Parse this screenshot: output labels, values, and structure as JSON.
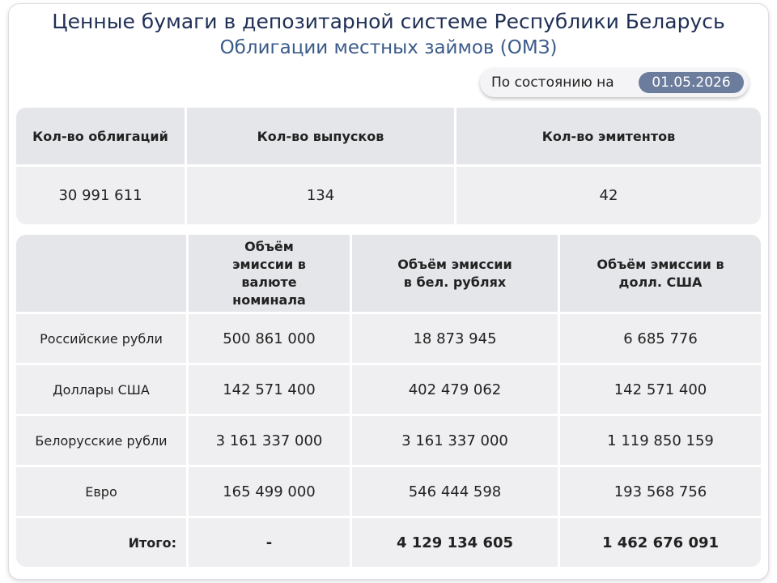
{
  "header": {
    "title": "Ценные бумаги в депозитарной системе Республики Беларусь",
    "subtitle": "Облигации местных займов (ОМЗ)",
    "as_of_label": "По состоянию на",
    "as_of_date": "01.05.2026"
  },
  "summary": {
    "columns": [
      "Кол-во облигаций",
      "Кол-во выпусков",
      "Кол-во эмитентов"
    ],
    "values": [
      "30 991 611",
      "134",
      "42"
    ]
  },
  "emissions": {
    "columns": [
      "Объём эмиссии в валюте номинала",
      "Объём эмиссии в бел. рублях",
      "Объём эмиссии в долл. США"
    ],
    "rows": [
      {
        "label": "Российские рубли",
        "values": [
          "500 861 000",
          "18 873 945",
          "6 685 776"
        ]
      },
      {
        "label": "Доллары США",
        "values": [
          "142 571 400",
          "402 479 062",
          "142 571 400"
        ]
      },
      {
        "label": "Белорусские рубли",
        "values": [
          "3 161 337 000",
          "3 161 337 000",
          "1 119 850 159"
        ]
      },
      {
        "label": "Евро",
        "values": [
          "165 499 000",
          "546 444 598",
          "193 568 756"
        ]
      }
    ],
    "total": {
      "label": "Итого:",
      "values": [
        "-",
        "4 129 134 605",
        "1 462 676 091"
      ]
    }
  }
}
